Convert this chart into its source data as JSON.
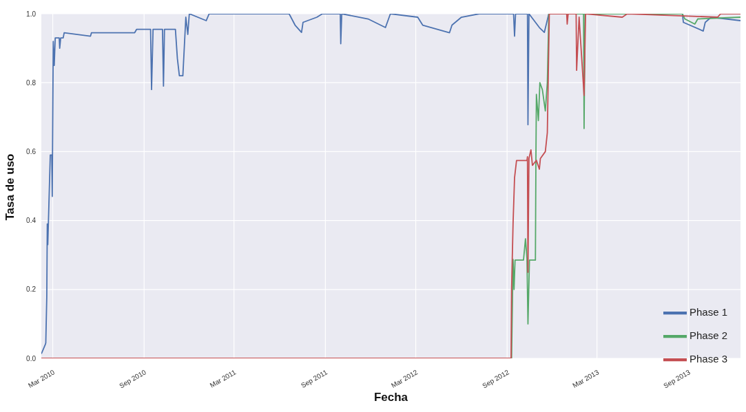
{
  "chart_data": {
    "type": "line",
    "xlabel": "Fecha",
    "ylabel": "Tasa de uso",
    "xlim": [
      "2010-02-06",
      "2013-12-15"
    ],
    "xticks": [
      {
        "value": "2010-03-01",
        "label": "Mar 2010"
      },
      {
        "value": "2010-09-01",
        "label": "Sep 2010"
      },
      {
        "value": "2011-03-01",
        "label": "Mar 2011"
      },
      {
        "value": "2011-09-01",
        "label": "Sep 2011"
      },
      {
        "value": "2012-03-01",
        "label": "Mar 2012"
      },
      {
        "value": "2012-09-01",
        "label": "Sep 2012"
      },
      {
        "value": "2013-03-01",
        "label": "Mar 2013"
      },
      {
        "value": "2013-09-01",
        "label": "Sep 2013"
      }
    ],
    "ylim": [
      0,
      1
    ],
    "yticks": [
      {
        "value": 0,
        "label": "0.0"
      },
      {
        "value": 0.2,
        "label": "0.2"
      },
      {
        "value": 0.4,
        "label": "0.4"
      },
      {
        "value": 0.6,
        "label": "0.6"
      },
      {
        "value": 0.8,
        "label": "0.8"
      },
      {
        "value": 1,
        "label": "1.0"
      }
    ],
    "grid": true,
    "legend": "bottom right",
    "marker": "none",
    "line_style": "solid",
    "series": [
      {
        "name": "Phase 1",
        "color": "#4c72b0",
        "x": [
          "2010-02-06",
          "2010-02-14",
          "2010-02-15",
          "2010-02-17",
          "2010-02-18",
          "2010-02-19",
          "2010-02-24",
          "2010-02-27",
          "2010-02-28",
          "2010-03-02",
          "2010-03-04",
          "2010-03-06",
          "2010-03-14",
          "2010-03-15",
          "2010-03-17",
          "2010-03-22",
          "2010-03-24",
          "2010-05-16",
          "2010-05-18",
          "2010-08-13",
          "2010-08-17",
          "2010-09-14",
          "2010-09-16",
          "2010-09-19",
          "2010-10-08",
          "2010-10-10",
          "2010-10-12",
          "2010-11-03",
          "2010-11-07",
          "2010-11-11",
          "2010-11-18",
          "2010-11-24",
          "2010-11-28",
          "2010-12-01",
          "2011-01-04",
          "2011-01-10",
          "2011-06-20",
          "2011-07-02",
          "2011-07-15",
          "2011-07-18",
          "2011-08-15",
          "2011-08-26",
          "2011-10-01",
          "2011-10-02",
          "2011-10-04",
          "2011-11-26",
          "2011-12-31",
          "2012-01-10",
          "2012-03-05",
          "2012-03-15",
          "2012-05-08",
          "2012-05-13",
          "2012-06-01",
          "2012-07-07",
          "2012-09-14",
          "2012-09-16",
          "2012-09-18",
          "2012-10-12",
          "2012-10-13",
          "2012-10-15",
          "2012-11-05",
          "2012-11-15",
          "2012-11-24",
          "2013-08-20",
          "2013-08-22",
          "2013-10-01",
          "2013-10-05",
          "2013-10-17",
          "2013-12-15"
        ],
        "values": [
          0.013,
          0.04,
          0.045,
          0.18,
          0.39,
          0.33,
          0.59,
          0.59,
          0.47,
          0.92,
          0.85,
          0.93,
          0.93,
          0.9,
          0.93,
          0.93,
          0.945,
          0.935,
          0.945,
          0.945,
          0.955,
          0.955,
          0.78,
          0.955,
          0.955,
          0.79,
          0.955,
          0.955,
          0.87,
          0.82,
          0.82,
          0.99,
          0.94,
          1.0,
          0.98,
          1.0,
          1.0,
          0.967,
          0.946,
          0.975,
          0.99,
          1.0,
          1.0,
          0.913,
          1.0,
          0.985,
          0.96,
          1.0,
          0.99,
          0.967,
          0.945,
          0.967,
          0.99,
          1.0,
          1.0,
          0.935,
          1.0,
          1.0,
          0.678,
          1.0,
          0.96,
          0.946,
          1.0,
          1.0,
          0.975,
          0.95,
          0.975,
          0.99,
          0.98
        ]
      },
      {
        "name": "Phase 2",
        "color": "#55a868",
        "x": [
          "2010-02-06",
          "2012-09-10",
          "2012-09-13",
          "2012-09-15",
          "2012-09-17",
          "2012-10-04",
          "2012-10-08",
          "2012-10-11",
          "2012-10-13",
          "2012-10-16",
          "2012-10-28",
          "2012-10-29",
          "2012-10-30",
          "2012-11-03",
          "2012-11-06",
          "2012-11-11",
          "2012-11-17",
          "2012-11-21",
          "2012-11-24",
          "2013-02-02",
          "2013-02-03",
          "2013-02-05",
          "2013-08-20",
          "2013-08-25",
          "2013-09-14",
          "2013-09-20",
          "2013-12-15"
        ],
        "values": [
          0,
          0,
          0.287,
          0.2,
          0.285,
          0.285,
          0.347,
          0.29,
          0.1,
          0.285,
          0.285,
          0.574,
          0.766,
          0.69,
          0.8,
          0.78,
          0.718,
          0.8,
          1.0,
          1.0,
          0.667,
          1.0,
          1.0,
          0.985,
          0.97,
          0.985,
          0.99
        ]
      },
      {
        "name": "Phase 3",
        "color": "#c44e52",
        "x": [
          "2010-02-06",
          "2012-09-09",
          "2012-09-10",
          "2012-09-13",
          "2012-09-16",
          "2012-09-20",
          "2012-10-11",
          "2012-10-12",
          "2012-10-13",
          "2012-10-15",
          "2012-10-19",
          "2012-10-22",
          "2012-10-30",
          "2012-11-05",
          "2012-11-07",
          "2012-11-17",
          "2012-11-21",
          "2012-11-25",
          "2012-12-30",
          "2012-12-31",
          "2013-01-02",
          "2013-01-18",
          "2013-01-19",
          "2013-01-24",
          "2013-02-03",
          "2013-02-06",
          "2013-04-21",
          "2013-05-01",
          "2013-10-30",
          "2013-11-05",
          "2013-12-15"
        ],
        "values": [
          0,
          0,
          0.2,
          0.391,
          0.524,
          0.574,
          0.574,
          0.585,
          0.25,
          0.58,
          0.605,
          0.56,
          0.575,
          0.549,
          0.58,
          0.6,
          0.655,
          1.0,
          1.0,
          0.97,
          1.0,
          1.0,
          0.836,
          0.99,
          0.763,
          1.0,
          0.99,
          1.0,
          0.99,
          1.0,
          1.0
        ]
      }
    ]
  }
}
